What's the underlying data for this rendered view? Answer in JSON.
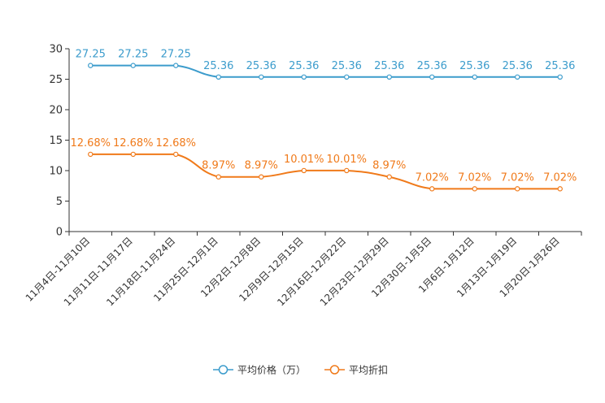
{
  "chart_data": {
    "type": "line",
    "categories": [
      "11月4日-11月10日",
      "11月11日-11月17日",
      "11月18日-11月24日",
      "11月25日-12月1日",
      "12月2日-12月8日",
      "12月9日-12月15日",
      "12月16日-12月22日",
      "12月23日-12月29日",
      "12月30日-1月5日",
      "1月6日-1月12日",
      "1月13日-1月19日",
      "1月20日-1月26日"
    ],
    "ylim": [
      0,
      30
    ],
    "yticks": [
      0,
      5,
      10,
      15,
      20,
      25,
      30
    ],
    "grid": false,
    "legend": "bottom",
    "series": [
      {
        "name": "平均价格（万）",
        "color": "#3c9ccc",
        "values": [
          27.25,
          27.25,
          27.25,
          25.36,
          25.36,
          25.36,
          25.36,
          25.36,
          25.36,
          25.36,
          25.36,
          25.36
        ],
        "labels": [
          "27.25",
          "27.25",
          "27.25",
          "25.36",
          "25.36",
          "25.36",
          "25.36",
          "25.36",
          "25.36",
          "25.36",
          "25.36",
          "25.36"
        ]
      },
      {
        "name": "平均折扣",
        "color": "#f07a1a",
        "values": [
          12.68,
          12.68,
          12.68,
          8.97,
          8.97,
          10.01,
          10.01,
          8.97,
          7.02,
          7.02,
          7.02,
          7.02
        ],
        "labels": [
          "12.68%",
          "12.68%",
          "12.68%",
          "8.97%",
          "8.97%",
          "10.01%",
          "10.01%",
          "8.97%",
          "7.02%",
          "7.02%",
          "7.02%",
          "7.02%"
        ]
      }
    ]
  }
}
